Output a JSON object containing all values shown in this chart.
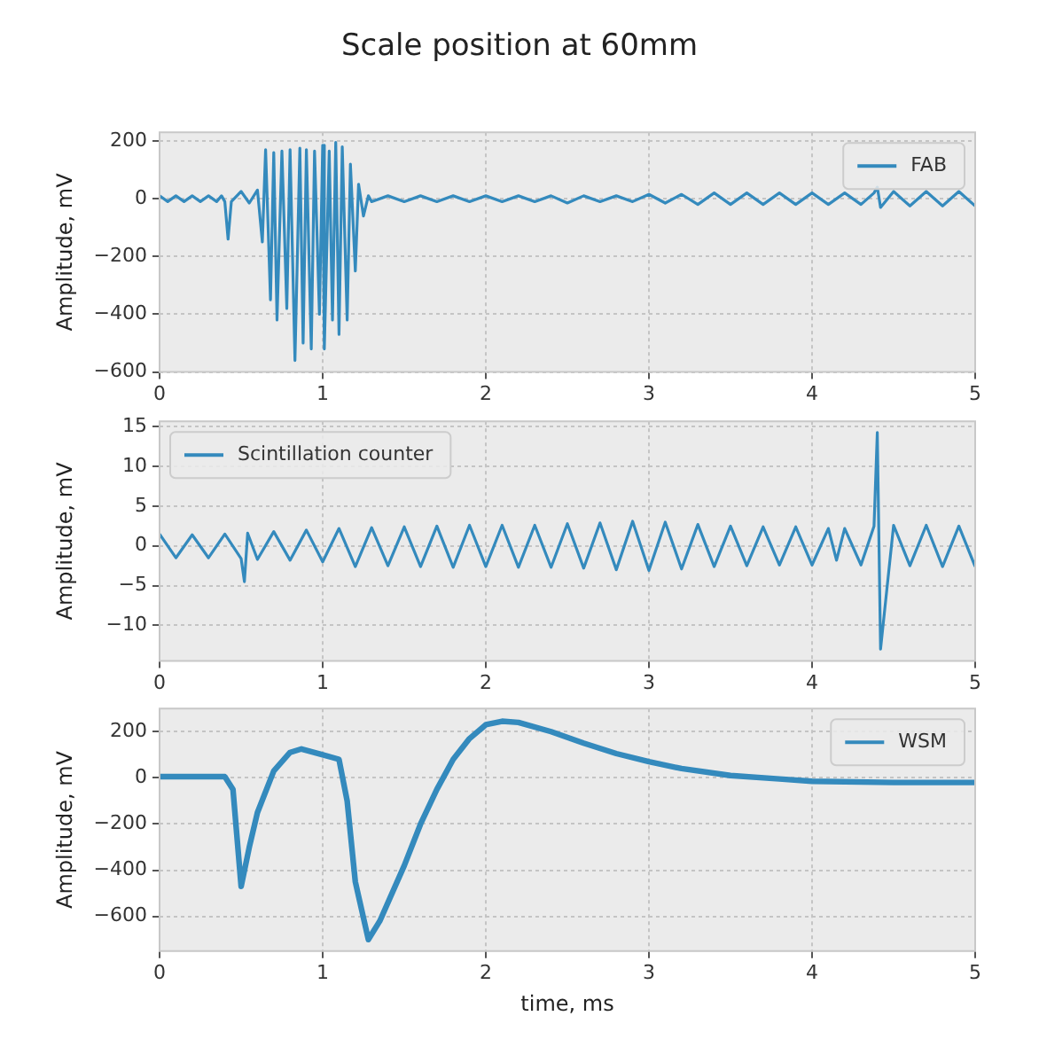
{
  "chart_data": [
    {
      "type": "line",
      "title": "Scale position at 60mm",
      "ylabel": "Amplitude, mV",
      "xlim": [
        0,
        5
      ],
      "xticks": [
        0,
        1,
        2,
        3,
        4,
        5
      ],
      "ylim": [
        -600,
        230
      ],
      "yticks": [
        -600,
        -400,
        -200,
        0,
        200
      ],
      "grid": true,
      "legend": "top right",
      "line_style": "solid",
      "marker": "none",
      "x": [
        0,
        0.05,
        0.1,
        0.15,
        0.2,
        0.25,
        0.3,
        0.35,
        0.38,
        0.4,
        0.42,
        0.44,
        0.5,
        0.55,
        0.6,
        0.63,
        0.65,
        0.68,
        0.7,
        0.72,
        0.75,
        0.78,
        0.8,
        0.83,
        0.86,
        0.88,
        0.9,
        0.93,
        0.95,
        0.98,
        1.0,
        1.01,
        1.04,
        1.06,
        1.08,
        1.1,
        1.12,
        1.15,
        1.17,
        1.2,
        1.22,
        1.25,
        1.28,
        1.3,
        1.4,
        1.5,
        1.6,
        1.7,
        1.8,
        1.9,
        2.0,
        2.1,
        2.2,
        2.3,
        2.4,
        2.5,
        2.6,
        2.7,
        2.8,
        2.9,
        3.0,
        3.1,
        3.2,
        3.3,
        3.4,
        3.5,
        3.6,
        3.7,
        3.8,
        3.9,
        4.0,
        4.1,
        4.2,
        4.3,
        4.38,
        4.4,
        4.42,
        4.5,
        4.6,
        4.7,
        4.8,
        4.9,
        5.0
      ],
      "series": [
        {
          "name": "FAB",
          "color": "#348abd",
          "values": [
            10,
            -10,
            10,
            -10,
            10,
            -10,
            10,
            -10,
            10,
            -10,
            -140,
            -10,
            25,
            -15,
            30,
            -150,
            170,
            -350,
            160,
            -420,
            165,
            -380,
            170,
            -560,
            175,
            -500,
            170,
            -520,
            165,
            -400,
            185,
            -520,
            165,
            -420,
            195,
            -470,
            180,
            -420,
            120,
            -250,
            50,
            -60,
            10,
            -10,
            10,
            -10,
            10,
            -10,
            10,
            -10,
            10,
            -10,
            10,
            -10,
            10,
            -15,
            10,
            -10,
            10,
            -10,
            15,
            -15,
            15,
            -20,
            20,
            -20,
            20,
            -20,
            20,
            -20,
            20,
            -20,
            20,
            -20,
            20,
            40,
            -30,
            25,
            -25,
            25,
            -25,
            25,
            -25
          ]
        }
      ]
    },
    {
      "type": "line",
      "ylabel": "Amplitude, mV",
      "xlim": [
        0,
        5
      ],
      "xticks": [
        0,
        1,
        2,
        3,
        4,
        5
      ],
      "ylim": [
        -14.5,
        15.7
      ],
      "yticks": [
        -10,
        -5,
        0,
        5,
        10,
        15
      ],
      "grid": true,
      "legend": "top left",
      "line_style": "solid",
      "marker": "none",
      "x": [
        0,
        0.1,
        0.2,
        0.3,
        0.4,
        0.5,
        0.52,
        0.54,
        0.6,
        0.7,
        0.8,
        0.9,
        1.0,
        1.1,
        1.2,
        1.3,
        1.4,
        1.5,
        1.6,
        1.7,
        1.8,
        1.9,
        2.0,
        2.1,
        2.2,
        2.3,
        2.4,
        2.5,
        2.6,
        2.7,
        2.8,
        2.9,
        3.0,
        3.1,
        3.2,
        3.3,
        3.4,
        3.5,
        3.6,
        3.7,
        3.8,
        3.9,
        4.0,
        4.1,
        4.15,
        4.2,
        4.3,
        4.38,
        4.4,
        4.42,
        4.5,
        4.6,
        4.7,
        4.8,
        4.9,
        5.0
      ],
      "series": [
        {
          "name": "Scintillation counter",
          "color": "#348abd",
          "values": [
            1.5,
            -1.5,
            1.4,
            -1.5,
            1.5,
            -1.6,
            -4.5,
            1.6,
            -1.7,
            1.8,
            -1.8,
            2,
            -2,
            2.2,
            -2.6,
            2.3,
            -2.5,
            2.4,
            -2.6,
            2.5,
            -2.7,
            2.6,
            -2.6,
            2.6,
            -2.7,
            2.6,
            -2.7,
            2.8,
            -2.8,
            2.9,
            -3,
            3.1,
            -3.1,
            3,
            -2.9,
            2.7,
            -2.6,
            2.5,
            -2.5,
            2.4,
            -2.4,
            2.4,
            -2.4,
            2.2,
            -1.8,
            2.2,
            -2.4,
            2.5,
            14.3,
            -13,
            2.6,
            -2.5,
            2.6,
            -2.6,
            2.5,
            -2.6
          ]
        }
      ]
    },
    {
      "type": "line",
      "ylabel": "Amplitude, mV",
      "xlabel": "time, ms",
      "xlim": [
        0,
        5
      ],
      "xticks": [
        0,
        1,
        2,
        3,
        4,
        5
      ],
      "ylim": [
        -750,
        300
      ],
      "yticks": [
        -600,
        -400,
        -200,
        0,
        200
      ],
      "grid": true,
      "legend": "top right",
      "line_style": "solid",
      "marker": "none",
      "x": [
        0,
        0.2,
        0.4,
        0.45,
        0.5,
        0.55,
        0.6,
        0.7,
        0.8,
        0.87,
        1.0,
        1.1,
        1.15,
        1.2,
        1.28,
        1.35,
        1.5,
        1.6,
        1.7,
        1.8,
        1.9,
        2.0,
        2.1,
        2.2,
        2.4,
        2.6,
        2.8,
        3.0,
        3.2,
        3.5,
        3.8,
        4.0,
        4.5,
        5.0
      ],
      "series": [
        {
          "name": "WSM",
          "color": "#348abd",
          "values": [
            5,
            5,
            5,
            -50,
            -470,
            -300,
            -150,
            30,
            110,
            125,
            100,
            80,
            -100,
            -450,
            -700,
            -620,
            -380,
            -200,
            -50,
            80,
            170,
            230,
            245,
            240,
            200,
            150,
            105,
            70,
            40,
            10,
            -5,
            -15,
            -20,
            -20
          ]
        }
      ]
    }
  ]
}
